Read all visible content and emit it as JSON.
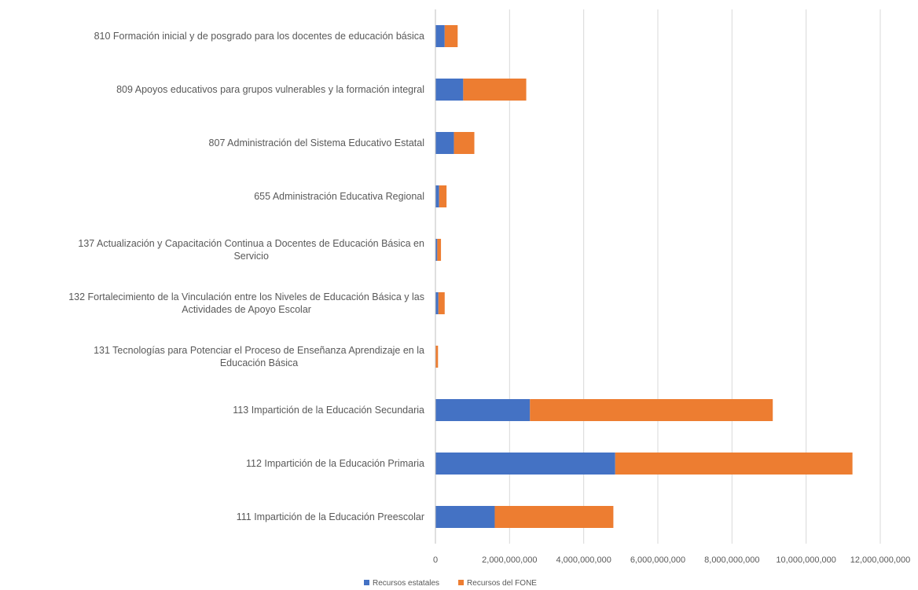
{
  "chart_data": {
    "type": "bar",
    "orientation": "horizontal",
    "stacked": true,
    "title": "",
    "xlabel": "",
    "ylabel": "",
    "xlim": [
      0,
      12000000000
    ],
    "x_ticks": [
      0,
      2000000000,
      4000000000,
      6000000000,
      8000000000,
      10000000000,
      12000000000
    ],
    "x_tick_labels": [
      "0",
      "2,000,000,000",
      "4,000,000,000",
      "6,000,000,000",
      "8,000,000,000",
      "10,000,000,000",
      "12,000,000,000"
    ],
    "grid": true,
    "legend_position": "bottom",
    "categories": [
      "810 Formación inicial y de posgrado para los docentes de educación básica",
      "809 Apoyos educativos para grupos vulnerables y la formación integral",
      "807 Administración del Sistema Educativo Estatal",
      "655 Administración Educativa Regional",
      "137 Actualización y Capacitación Continua a Docentes de Educación Básica en Servicio",
      "132 Fortalecimiento de la Vinculación entre los Niveles de Educación Básica y las Actividades de Apoyo Escolar",
      "131 Tecnologías para Potenciar el Proceso de Enseñanza Aprendizaje en la Educación Básica",
      "113 Impartición de la Educación Secundaria",
      "112 Impartición de la Educación Primaria",
      "111 Impartición de la Educación Preescolar"
    ],
    "category_lines": [
      [
        "810 Formación inicial y de posgrado para los docentes de educación básica"
      ],
      [
        "809 Apoyos educativos para grupos vulnerables y la formación integral"
      ],
      [
        "807 Administración del Sistema Educativo Estatal"
      ],
      [
        "655 Administración Educativa Regional"
      ],
      [
        "137 Actualización y Capacitación Continua a Docentes de Educación Básica en",
        "Servicio"
      ],
      [
        "132 Fortalecimiento de la Vinculación entre los Niveles de Educación Básica y las",
        "Actividades de Apoyo Escolar"
      ],
      [
        "131 Tecnologías para Potenciar el Proceso de Enseñanza Aprendizaje en la",
        "Educación Básica"
      ],
      [
        "113 Impartición de la Educación Secundaria"
      ],
      [
        "112 Impartición de la Educación Primaria"
      ],
      [
        "111 Impartición de la Educación Preescolar"
      ]
    ],
    "series": [
      {
        "name": "Recursos estatales",
        "color": "#4472c4",
        "values": [
          250000000,
          750000000,
          500000000,
          100000000,
          50000000,
          80000000,
          10000000,
          2550000000,
          4850000000,
          1600000000
        ]
      },
      {
        "name": "Recursos del FONE",
        "color": "#ed7d31",
        "values": [
          350000000,
          1700000000,
          550000000,
          200000000,
          100000000,
          170000000,
          60000000,
          6550000000,
          6400000000,
          3200000000
        ]
      }
    ]
  }
}
